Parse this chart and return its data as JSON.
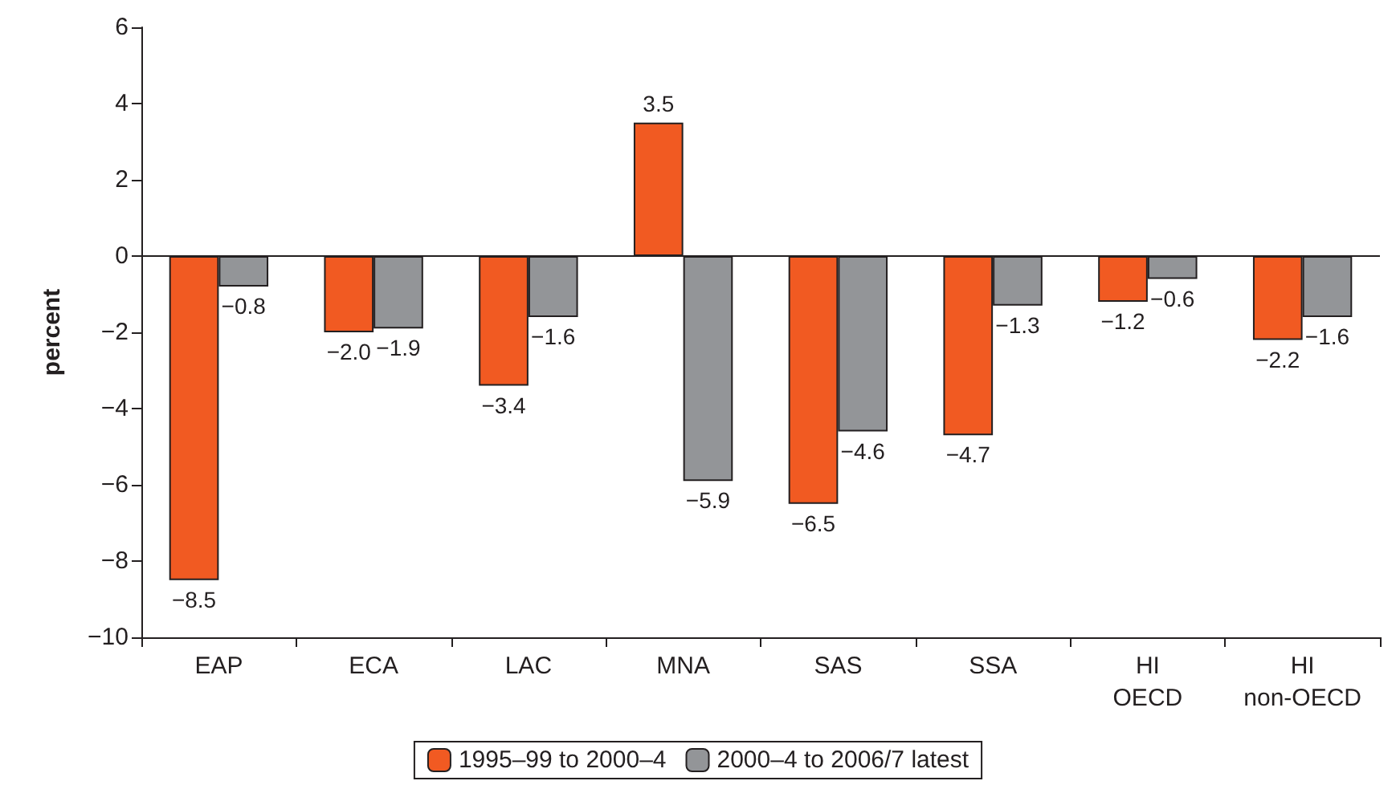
{
  "chart_data": {
    "type": "bar",
    "ylabel": "percent",
    "categories": [
      "EAP",
      "ECA",
      "LAC",
      "MNA",
      "SAS",
      "SSA",
      "HI\nOECD",
      "HI\nnon-OECD"
    ],
    "series": [
      {
        "name": "1995–99 to 2000–4",
        "color": "#f15a22",
        "values": [
          -8.5,
          -2.0,
          -3.4,
          3.5,
          -6.5,
          -4.7,
          -1.2,
          -2.2
        ],
        "value_labels": [
          "−8.5",
          "−2.0",
          "−3.4",
          "3.5",
          "−6.5",
          "−4.7",
          "−1.2",
          "−2.2"
        ]
      },
      {
        "name": "2000–4 to 2006/7 latest",
        "color": "#939598",
        "values": [
          -0.8,
          -1.9,
          -1.6,
          -5.9,
          -4.6,
          -1.3,
          -0.6,
          -1.6
        ],
        "value_labels": [
          "−0.8",
          "−1.9",
          "−1.6",
          "−5.9",
          "−4.6",
          "−1.3",
          "−0.6",
          "−1.6"
        ]
      }
    ],
    "ylim": [
      -10,
      6
    ],
    "yticks": [
      {
        "value": -10,
        "label": "−10"
      },
      {
        "value": -8,
        "label": "−8"
      },
      {
        "value": -6,
        "label": "−6"
      },
      {
        "value": -4,
        "label": "−4"
      },
      {
        "value": -2,
        "label": "−2"
      },
      0,
      2,
      4,
      6
    ],
    "ref_lines": [
      {
        "axis": "y",
        "value": 0,
        "color": "#231f20"
      }
    ],
    "grid": false,
    "legend": "bottom"
  }
}
